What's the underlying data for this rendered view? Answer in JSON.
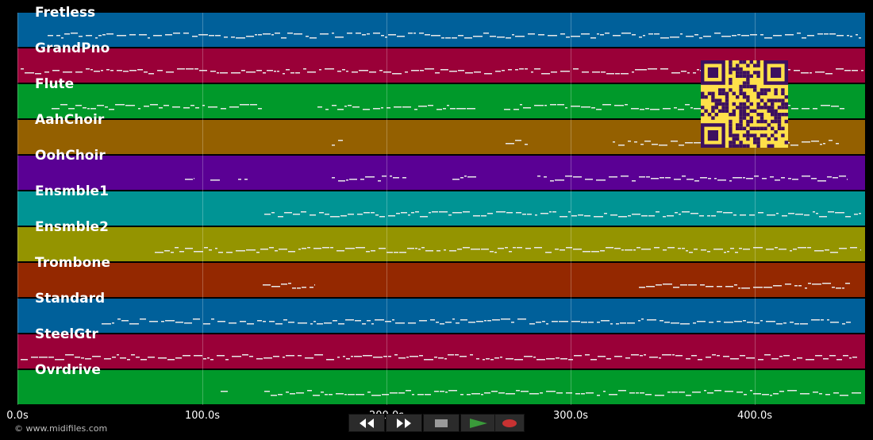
{
  "tracks": [
    {
      "name": "Fretless",
      "color": "#00609a"
    },
    {
      "name": "GrandPno",
      "color": "#9a0038"
    },
    {
      "name": "Flute",
      "color": "#00992a"
    },
    {
      "name": "AahChoir",
      "color": "#946000"
    },
    {
      "name": "OohChoir",
      "color": "#5a0094"
    },
    {
      "name": "Ensmble1",
      "color": "#009494"
    },
    {
      "name": "Ensmble2",
      "color": "#949400"
    },
    {
      "name": "Trombone",
      "color": "#942800"
    },
    {
      "name": "Standard",
      "color": "#00609a"
    },
    {
      "name": "SteelGtr",
      "color": "#9a0038"
    },
    {
      "name": "Ovrdrive",
      "color": "#00992a"
    }
  ],
  "timeline": {
    "ticks": [
      "0.0s",
      "100.0s",
      "200.0s",
      "300.0s",
      "400.0s"
    ]
  },
  "footer": {
    "copyright": "© www.midifiles.com"
  },
  "transport": {
    "buttons": [
      {
        "name": "rewind-button",
        "icon": "rewind-icon"
      },
      {
        "name": "fast-forward-button",
        "icon": "fast-forward-icon"
      },
      {
        "name": "stop-button",
        "icon": "stop-icon"
      },
      {
        "name": "play-button",
        "icon": "play-icon"
      },
      {
        "name": "record-button",
        "icon": "record-icon"
      }
    ],
    "colors": {
      "play": "#3a9a3a",
      "record": "#c83232",
      "stop": "#9a9a9a"
    }
  },
  "qr_code": {
    "icon": "qr-code-icon",
    "fg": "#3c1060",
    "bg": "#ffe04a"
  }
}
